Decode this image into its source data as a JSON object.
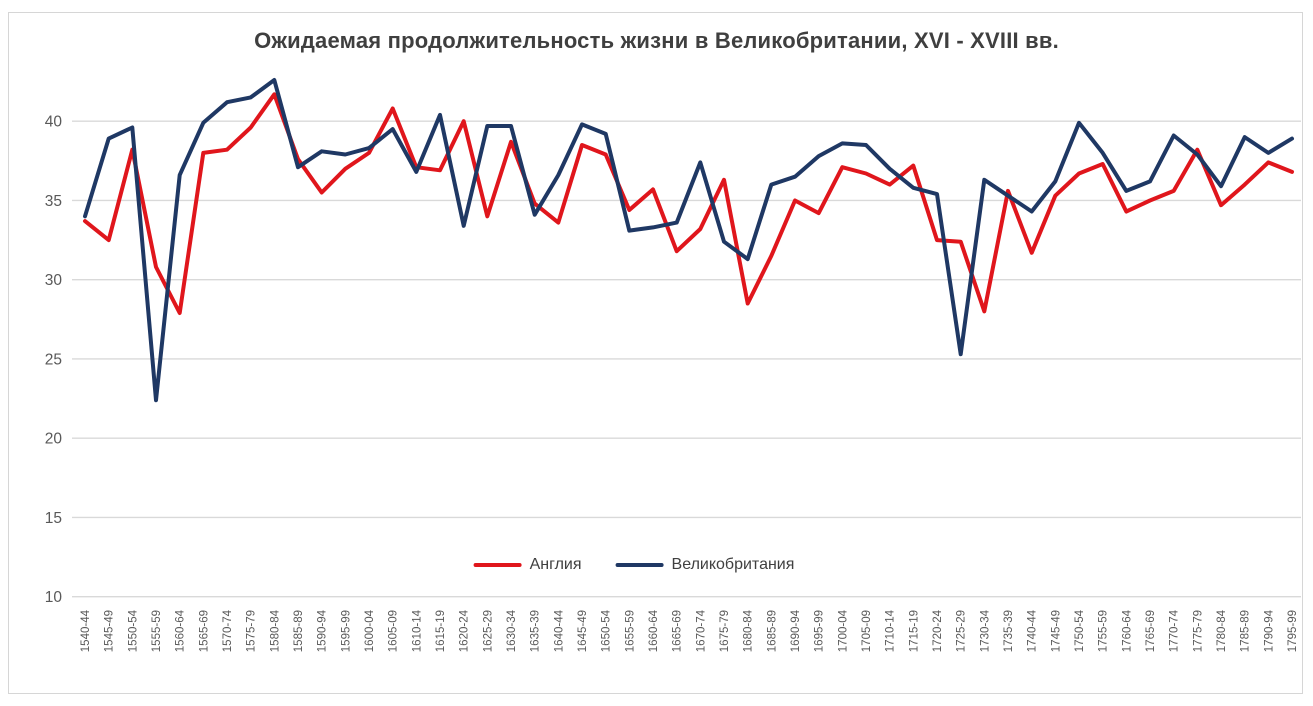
{
  "chart_data": {
    "type": "line",
    "title": "Ожидаемая продолжительность жизни в Великобритании, XVI - XVIII вв.",
    "xlabel": "",
    "ylabel": "",
    "ylim": [
      10,
      43.5
    ],
    "yticks": [
      10,
      15,
      20,
      25,
      30,
      35,
      40
    ],
    "grid": true,
    "legend_position": "bottom-center",
    "categories": [
      "1540-44",
      "1545-49",
      "1550-54",
      "1555-59",
      "1560-64",
      "1565-69",
      "1570-74",
      "1575-79",
      "1580-84",
      "1585-89",
      "1590-94",
      "1595-99",
      "1600-04",
      "1605-09",
      "1610-14",
      "1615-19",
      "1620-24",
      "1625-29",
      "1630-34",
      "1635-39",
      "1640-44",
      "1645-49",
      "1650-54",
      "1655-59",
      "1660-64",
      "1665-69",
      "1670-74",
      "1675-79",
      "1680-84",
      "1685-89",
      "1690-94",
      "1695-99",
      "1700-04",
      "1705-09",
      "1710-14",
      "1715-19",
      "1720-24",
      "1725-29",
      "1730-34",
      "1735-39",
      "1740-44",
      "1745-49",
      "1750-54",
      "1755-59",
      "1760-64",
      "1765-69",
      "1770-74",
      "1775-79",
      "1780-84",
      "1785-89",
      "1790-94",
      "1795-99"
    ],
    "series": [
      {
        "name": "Англия",
        "color": "#e0161c",
        "values": [
          33.7,
          32.5,
          38.2,
          30.8,
          27.9,
          38.0,
          38.2,
          39.6,
          41.7,
          37.6,
          35.5,
          37.0,
          38.0,
          40.8,
          37.1,
          36.9,
          40.0,
          34.0,
          38.7,
          34.8,
          33.6,
          38.5,
          37.9,
          34.4,
          35.7,
          31.8,
          33.2,
          36.3,
          28.5,
          31.5,
          35.0,
          34.2,
          37.1,
          36.7,
          36.0,
          37.2,
          32.5,
          32.4,
          28.0,
          35.6,
          31.7,
          35.3,
          36.7,
          37.3,
          34.3,
          35.0,
          35.6,
          38.2,
          34.7,
          36.0,
          37.4,
          36.8
        ]
      },
      {
        "name": "Великобритания",
        "color": "#1f3864",
        "values": [
          34.0,
          38.9,
          39.6,
          22.4,
          36.6,
          39.9,
          41.2,
          41.5,
          42.6,
          37.1,
          38.1,
          37.9,
          38.3,
          39.5,
          36.8,
          40.4,
          33.4,
          39.7,
          39.7,
          34.1,
          36.6,
          39.8,
          39.2,
          33.1,
          33.3,
          33.6,
          37.4,
          32.4,
          31.3,
          36.0,
          36.5,
          37.8,
          38.6,
          38.5,
          37.0,
          35.8,
          35.4,
          25.3,
          36.3,
          35.3,
          34.3,
          36.2,
          39.9,
          38.0,
          35.6,
          36.2,
          39.1,
          37.9,
          35.9,
          39.0,
          38.0,
          38.9
        ]
      }
    ],
    "colors": {
      "gridline": "#d9d9d9",
      "tick_label": "#595959",
      "title": "#3f3f3f",
      "frame_border": "#d6d6d6"
    }
  }
}
